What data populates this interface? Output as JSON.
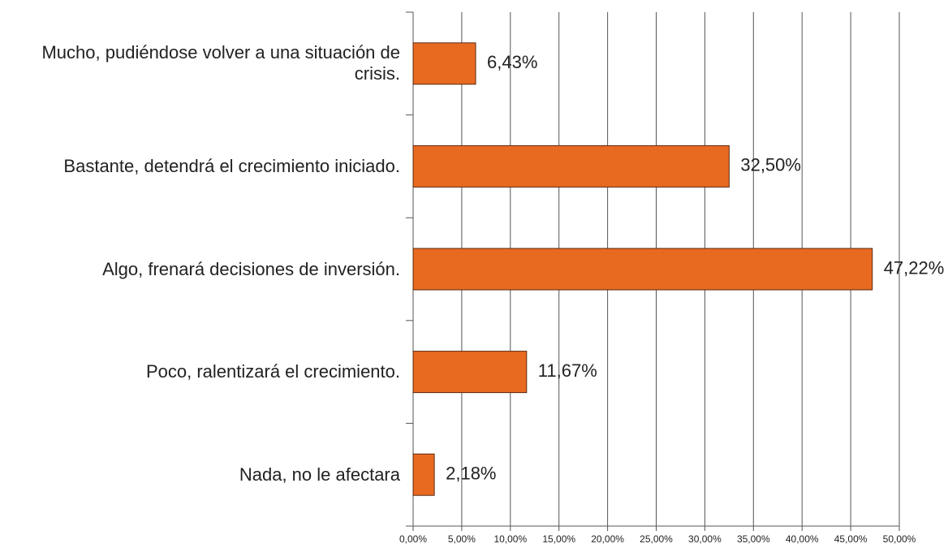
{
  "chart_data": {
    "type": "bar",
    "orientation": "horizontal",
    "categories": [
      "Mucho, pudiéndose volver a una situación de crisis.",
      "Bastante, detendrá el crecimiento iniciado.",
      "Algo, frenará decisiones de inversión.",
      "Poco, ralentizará el crecimiento.",
      "Nada, no le afectara"
    ],
    "values": [
      6.43,
      32.5,
      47.22,
      11.67,
      2.18
    ],
    "value_labels": [
      "6,43%",
      "32,50%",
      "47,22%",
      "11,67%",
      "2,18%"
    ],
    "color": "#e86a21",
    "xlim": [
      0,
      50
    ],
    "xticks": [
      {
        "value": 0,
        "label": "0,00%"
      },
      {
        "value": 5,
        "label": "5,00%"
      },
      {
        "value": 10,
        "label": "10,00%"
      },
      {
        "value": 15,
        "label": "15,00%"
      },
      {
        "value": 20,
        "label": "20,00%"
      },
      {
        "value": 25,
        "label": "25,00%"
      },
      {
        "value": 30,
        "label": "30,00%"
      },
      {
        "value": 35,
        "label": "35,00%"
      },
      {
        "value": 40,
        "label": "40,00%"
      },
      {
        "value": 45,
        "label": "45,00%"
      },
      {
        "value": 50,
        "label": "50,00%"
      }
    ],
    "grid": true
  }
}
